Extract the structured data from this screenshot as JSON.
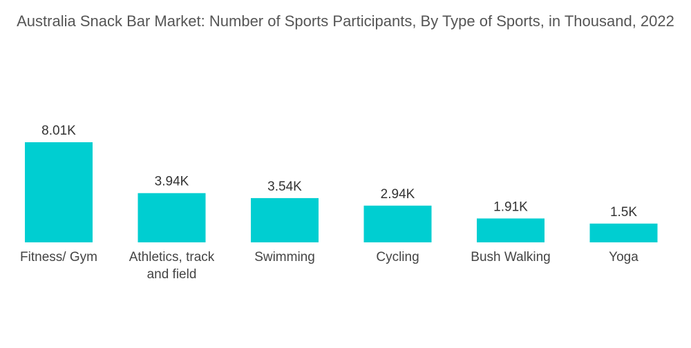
{
  "chart_data": {
    "type": "bar",
    "title": "Australia Snack Bar Market: Number of Sports Participants, By Type of Sports, in Thousand, 2022",
    "xlabel": "",
    "ylabel": "",
    "categories": [
      [
        "Fitness/ Gym"
      ],
      [
        "Athletics, track",
        "and field"
      ],
      [
        "Swimming"
      ],
      [
        "Cycling"
      ],
      [
        "Bush Walking"
      ],
      [
        "Yoga"
      ]
    ],
    "values": [
      8.01,
      3.94,
      3.54,
      2.94,
      1.91,
      1.5
    ],
    "value_labels": [
      "8.01K",
      "3.94K",
      "3.54K",
      "2.94K",
      "1.91K",
      "1.5K"
    ],
    "ylim": [
      0,
      8.01
    ],
    "grid": false,
    "legend": "none",
    "bar_color": "#00CED1"
  }
}
